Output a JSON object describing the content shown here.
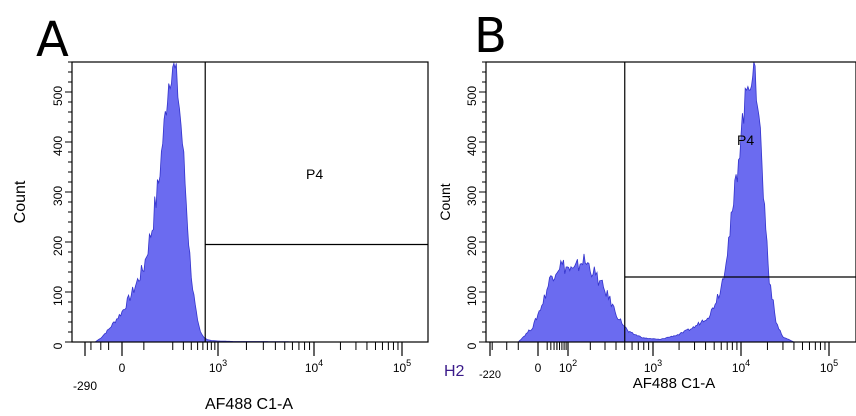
{
  "panels": [
    {
      "letter": "A",
      "tube_label": "",
      "gate_label": "P4"
    },
    {
      "letter": "B",
      "tube_label": "H2",
      "gate_label": "P4"
    }
  ],
  "chart_data": [
    {
      "type": "area",
      "panel": "A",
      "xlabel": "AF488 C1-A",
      "ylabel": "Count",
      "x_scale": "biexponential",
      "x_ticks": [
        {
          "value": -290,
          "label": "-290",
          "exp": ""
        },
        {
          "value": 0,
          "label": "0",
          "exp": ""
        },
        {
          "value": 1000,
          "label": "10",
          "exp": "3"
        },
        {
          "value": 10000,
          "label": "10",
          "exp": "4"
        },
        {
          "value": 100000,
          "label": "10",
          "exp": "5"
        }
      ],
      "y_ticks": [
        0,
        100,
        200,
        300,
        400,
        500
      ],
      "ylim": [
        0,
        560
      ],
      "gate": {
        "name": "P4",
        "x_start": 650,
        "y_level": 195
      },
      "fill_color": "#6b6bf0",
      "outline_color": "#3333cc",
      "series": [
        {
          "x": [
            -150,
            -100,
            -50,
            0,
            20,
            50,
            80,
            110,
            140,
            170,
            200,
            230,
            260,
            290,
            320,
            350,
            380,
            420,
            460,
            500,
            550,
            600,
            650,
            700,
            800,
            1000,
            1500,
            3000,
            10000,
            20000
          ],
          "values": [
            0,
            8,
            25,
            60,
            100,
            150,
            230,
            320,
            430,
            520,
            555,
            530,
            470,
            400,
            320,
            240,
            170,
            110,
            70,
            40,
            20,
            12,
            8,
            5,
            3,
            2,
            1,
            1,
            0,
            0
          ]
        }
      ]
    },
    {
      "type": "area",
      "panel": "B",
      "xlabel": "AF488 C1-A",
      "ylabel": "Count",
      "x_scale": "biexponential",
      "x_ticks": [
        {
          "value": -220,
          "label": "-220",
          "exp": ""
        },
        {
          "value": 0,
          "label": "0",
          "exp": ""
        },
        {
          "value": 100,
          "label": "10",
          "exp": "2"
        },
        {
          "value": 1000,
          "label": "10",
          "exp": "3"
        },
        {
          "value": 10000,
          "label": "10",
          "exp": "4"
        },
        {
          "value": 100000,
          "label": "10",
          "exp": "5"
        }
      ],
      "y_ticks": [
        0,
        100,
        200,
        300,
        400,
        500
      ],
      "ylim": [
        0,
        560
      ],
      "gate": {
        "name": "P4",
        "x_start": 500,
        "y_level": 130
      },
      "fill_color": "#6b6bf0",
      "outline_color": "#3333cc",
      "series": [
        {
          "x": [
            -50,
            -10,
            10,
            30,
            60,
            90,
            120,
            160,
            200,
            260,
            330,
            420,
            550,
            800,
            1200,
            2000,
            3000,
            4500,
            6000,
            8000,
            10000,
            12000,
            14000,
            16000,
            18000,
            21000,
            25000,
            30000,
            40000
          ],
          "values": [
            0,
            30,
            80,
            130,
            155,
            150,
            140,
            165,
            150,
            120,
            90,
            50,
            20,
            8,
            5,
            15,
            30,
            55,
            110,
            250,
            420,
            520,
            540,
            470,
            300,
            130,
            40,
            10,
            0
          ]
        }
      ]
    }
  ]
}
